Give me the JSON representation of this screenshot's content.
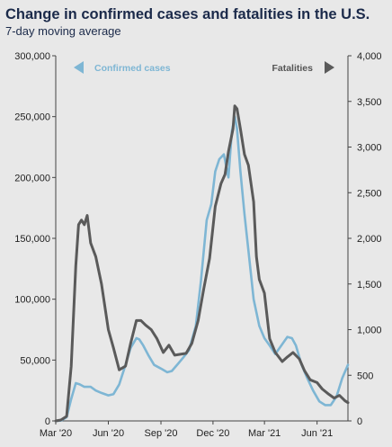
{
  "chart_data": {
    "type": "line",
    "title": "Change in confirmed cases and fatalities in the U.S.",
    "subtitle": "7-day moving average",
    "x_ticks": [
      "Mar '20",
      "Jun '20",
      "Sep '20",
      "Dec '20",
      "Mar '21",
      "Jun '21"
    ],
    "left_axis": {
      "ylim": [
        0,
        300000
      ],
      "ticks": [
        "0",
        "50,000",
        "100,000",
        "150,000",
        "200,000",
        "250,000",
        "300,000"
      ]
    },
    "right_axis": {
      "ylim": [
        0,
        4000
      ],
      "ticks": [
        "0",
        "500",
        "1,000",
        "1,500",
        "2,000",
        "2,500",
        "3,000",
        "3,500",
        "4,000"
      ]
    },
    "x_range": [
      "2020-03-01",
      "2021-07-25"
    ],
    "series": [
      {
        "name": "Confirmed cases",
        "axis": "left",
        "color": "#7eb6d4",
        "legend_position": "top-left",
        "x": [
          "2020-03-01",
          "2020-03-10",
          "2020-03-20",
          "2020-03-28",
          "2020-04-05",
          "2020-04-12",
          "2020-04-20",
          "2020-05-01",
          "2020-05-10",
          "2020-05-20",
          "2020-06-01",
          "2020-06-10",
          "2020-06-20",
          "2020-07-01",
          "2020-07-10",
          "2020-07-20",
          "2020-07-25",
          "2020-08-01",
          "2020-08-10",
          "2020-08-20",
          "2020-09-01",
          "2020-09-12",
          "2020-09-20",
          "2020-10-01",
          "2020-10-10",
          "2020-10-20",
          "2020-11-01",
          "2020-11-10",
          "2020-11-20",
          "2020-11-28",
          "2020-12-05",
          "2020-12-12",
          "2020-12-20",
          "2020-12-28",
          "2021-01-03",
          "2021-01-08",
          "2021-01-12",
          "2021-01-18",
          "2021-01-25",
          "2021-02-01",
          "2021-02-10",
          "2021-02-20",
          "2021-03-01",
          "2021-03-10",
          "2021-03-20",
          "2021-04-01",
          "2021-04-10",
          "2021-04-18",
          "2021-04-25",
          "2021-05-05",
          "2021-05-15",
          "2021-05-25",
          "2021-06-05",
          "2021-06-15",
          "2021-06-25",
          "2021-07-05",
          "2021-07-15",
          "2021-07-25"
        ],
        "values": [
          0,
          200,
          3000,
          18000,
          31000,
          30000,
          28000,
          28000,
          25000,
          23000,
          21000,
          22000,
          30000,
          46000,
          60000,
          68000,
          67000,
          62000,
          54000,
          46000,
          43000,
          40000,
          41000,
          47000,
          52000,
          58000,
          78000,
          115000,
          165000,
          178000,
          205000,
          215000,
          219000,
          200000,
          238000,
          250000,
          240000,
          205000,
          170000,
          140000,
          100000,
          78000,
          68000,
          62000,
          55000,
          63000,
          69000,
          68000,
          62000,
          46000,
          35000,
          25000,
          16000,
          13000,
          13000,
          20000,
          35000,
          46000
        ]
      },
      {
        "name": "Fatalities",
        "axis": "right",
        "color": "#5a5a5a",
        "legend_position": "top-right",
        "x": [
          "2020-03-01",
          "2020-03-10",
          "2020-03-20",
          "2020-03-28",
          "2020-04-05",
          "2020-04-10",
          "2020-04-15",
          "2020-04-20",
          "2020-04-25",
          "2020-05-01",
          "2020-05-10",
          "2020-05-20",
          "2020-06-01",
          "2020-06-10",
          "2020-06-20",
          "2020-07-01",
          "2020-07-10",
          "2020-07-20",
          "2020-07-28",
          "2020-08-05",
          "2020-08-15",
          "2020-08-25",
          "2020-09-05",
          "2020-09-15",
          "2020-09-25",
          "2020-10-05",
          "2020-10-15",
          "2020-10-25",
          "2020-11-05",
          "2020-11-15",
          "2020-11-25",
          "2020-12-05",
          "2020-12-15",
          "2020-12-22",
          "2020-12-28",
          "2021-01-05",
          "2021-01-08",
          "2021-01-12",
          "2021-01-18",
          "2021-01-25",
          "2021-02-01",
          "2021-02-10",
          "2021-02-15",
          "2021-02-20",
          "2021-03-01",
          "2021-03-10",
          "2021-03-20",
          "2021-04-01",
          "2021-04-10",
          "2021-04-20",
          "2021-05-01",
          "2021-05-10",
          "2021-05-20",
          "2021-06-01",
          "2021-06-10",
          "2021-06-20",
          "2021-07-01",
          "2021-07-10",
          "2021-07-20",
          "2021-07-25"
        ],
        "values": [
          0,
          10,
          50,
          600,
          1700,
          2150,
          2200,
          2150,
          2250,
          1950,
          1800,
          1500,
          1000,
          800,
          560,
          600,
          850,
          1100,
          1100,
          1050,
          1000,
          900,
          750,
          830,
          720,
          730,
          740,
          850,
          1100,
          1450,
          1780,
          2350,
          2600,
          2700,
          2950,
          3200,
          3450,
          3420,
          3200,
          2920,
          2800,
          2400,
          1800,
          1550,
          1400,
          900,
          750,
          650,
          700,
          750,
          680,
          550,
          450,
          420,
          350,
          300,
          250,
          280,
          220,
          200
        ]
      }
    ]
  }
}
